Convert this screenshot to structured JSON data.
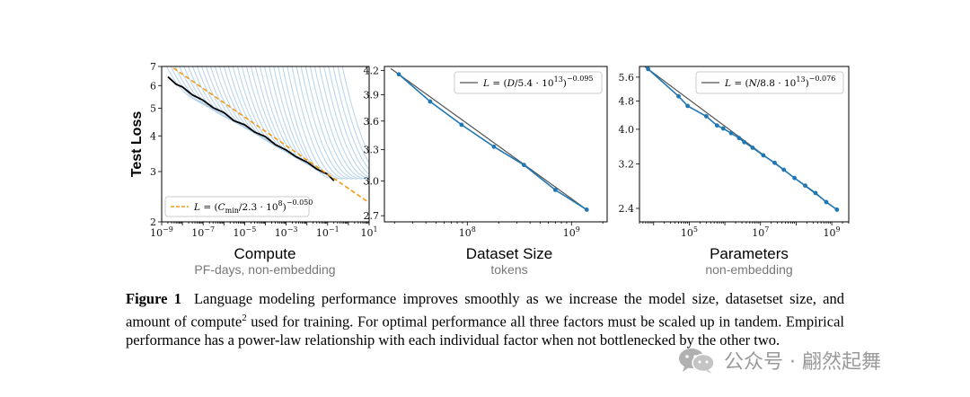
{
  "chart_data": [
    {
      "type": "line",
      "ylabel": "Test Loss",
      "xlabel": "Compute",
      "xsublabel": "PF-days, non-embedding",
      "xscale": "log",
      "yscale": "log",
      "xlim": [
        1e-09,
        10
      ],
      "ylim": [
        2,
        7
      ],
      "xticks": [
        1e-09,
        1e-07,
        1e-05,
        0.001,
        0.1,
        10
      ],
      "xtick_labels": [
        [
          "10",
          "−9"
        ],
        [
          "10",
          "−7"
        ],
        [
          "10",
          "−5"
        ],
        [
          "10",
          "−3"
        ],
        [
          "10",
          "−1"
        ],
        [
          "10",
          "1"
        ]
      ],
      "yticks": [
        2,
        3,
        4,
        5,
        6,
        7
      ],
      "ytick_labels": [
        "2",
        "3",
        "4",
        "5",
        "6",
        "7"
      ],
      "legend": {
        "placement": "lower-left",
        "text": "L = (C_min/2.3 · 10^8)^−0.050"
      },
      "fit": {
        "name": "L = (C_min/2.3 · 10^8)^−0.050",
        "coef": 230000000.0,
        "exponent": -0.05,
        "color": "#f39c12"
      },
      "frontier": {
        "color": "#000000",
        "x": [
          2e-09,
          5e-09,
          1e-08,
          3e-08,
          1e-07,
          3e-07,
          1e-06,
          3e-06,
          1e-05,
          3e-05,
          0.0001,
          0.0003,
          0.001,
          0.003,
          0.01,
          0.03,
          0.1,
          0.2
        ],
        "y": [
          6.4,
          6.1,
          5.9,
          5.6,
          5.3,
          5.05,
          4.8,
          4.55,
          4.35,
          4.15,
          3.95,
          3.75,
          3.55,
          3.4,
          3.22,
          3.08,
          2.92,
          2.8
        ]
      },
      "run_curves": {
        "color": "#a6c8e6",
        "count": 40
      }
    },
    {
      "type": "line",
      "xlabel": "Dataset Size",
      "xsublabel": "tokens",
      "xscale": "log",
      "yscale": "log",
      "xlim": [
        16000000.0,
        2200000000.0
      ],
      "ylim": [
        2.65,
        4.25
      ],
      "xticks": [
        100000000.0,
        1000000000.0
      ],
      "xtick_labels": [
        [
          "10",
          "8"
        ],
        [
          "10",
          "9"
        ]
      ],
      "yticks": [
        2.7,
        3.0,
        3.3,
        3.6,
        3.9,
        4.2
      ],
      "ytick_labels": [
        "2.7",
        "3.0",
        "3.3",
        "3.6",
        "3.9",
        "4.2"
      ],
      "legend": {
        "placement": "top-right",
        "text": "L = (D/5.4 · 10^13)^−0.095"
      },
      "fit": {
        "name": "L = (D/5.4 · 10^13)^−0.095",
        "coef": 54000000000000.0,
        "exponent": -0.095,
        "color": "#555555"
      },
      "series": [
        {
          "color": "#1f77b4",
          "x": [
            22000000.0,
            44000000.0,
            88000000.0,
            180000000.0,
            350000000.0,
            700000000.0,
            1400000000.0
          ],
          "y": [
            4.15,
            3.82,
            3.56,
            3.33,
            3.15,
            2.92,
            2.75
          ]
        }
      ]
    },
    {
      "type": "line",
      "xlabel": "Parameters",
      "xsublabel": "non-embedding",
      "xscale": "log",
      "yscale": "log",
      "xlim": [
        4000.0,
        3000000000.0
      ],
      "ylim": [
        2.2,
        6.0
      ],
      "xticks": [
        100000.0,
        10000000.0,
        1000000000.0
      ],
      "xtick_labels": [
        [
          "10",
          "5"
        ],
        [
          "10",
          "7"
        ],
        [
          "10",
          "9"
        ]
      ],
      "yticks": [
        2.4,
        3.2,
        4.0,
        4.8,
        5.6
      ],
      "ytick_labels": [
        "2.4",
        "3.2",
        "4.0",
        "4.8",
        "5.6"
      ],
      "legend": {
        "placement": "top-right",
        "text": "L = (N/8.8 · 10^13)^−0.076"
      },
      "fit": {
        "name": "L = (N/8.8 · 10^13)^−0.076",
        "coef": 88000000000000.0,
        "exponent": -0.076,
        "color": "#555555"
      },
      "series": [
        {
          "color": "#1f77b4",
          "x": [
            7000.0,
            50000.0,
            90000.0,
            300000.0,
            600000.0,
            900000.0,
            1500000.0,
            2500000.0,
            3500000.0,
            6000000.0,
            12000000.0,
            25000000.0,
            45000000.0,
            90000000.0,
            180000000.0,
            350000000.0,
            700000000.0,
            1400000000.0
          ],
          "y": [
            5.9,
            4.95,
            4.65,
            4.35,
            4.1,
            4.02,
            3.9,
            3.78,
            3.68,
            3.55,
            3.38,
            3.22,
            3.08,
            2.92,
            2.78,
            2.65,
            2.5,
            2.38
          ]
        }
      ]
    }
  ],
  "caption": {
    "label": "Figure 1",
    "text_before_sup": "Language modeling performance improves smoothly as we increase the model size, datasetset size, and amount of compute",
    "sup": "2",
    "text_after_sup": " used for training. For optimal performance all three factors must be scaled up in tandem. Empirical performance has a power-law relationship with each individual factor when not bottlenecked by the other two."
  },
  "watermark": {
    "text": "公众号 · 翩然起舞",
    "icon": "wechat-icon"
  }
}
